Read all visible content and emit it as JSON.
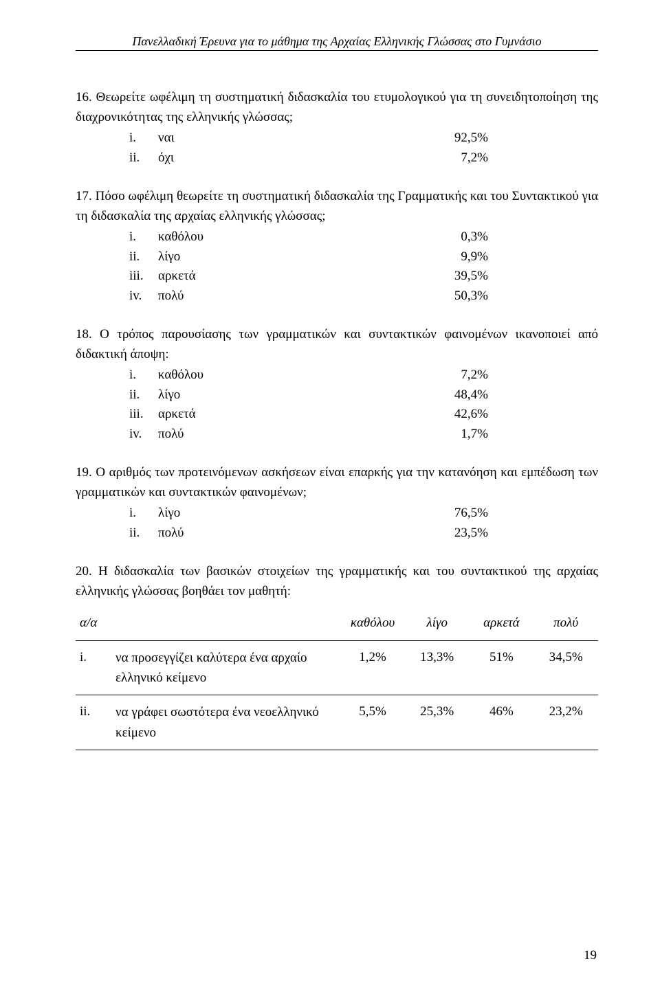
{
  "running_header": "Πανελλαδική Έρευνα για το μάθημα της Αρχαίας Ελληνικής Γλώσσας στο Γυμνάσιο",
  "q16": {
    "num": "16.",
    "text": "Θεωρείτε ωφέλιμη τη συστηματική διδασκαλία του ετυμολογικού για τη συνειδητοποίηση της διαχρονικότητας της ελληνικής γλώσσας;",
    "options": [
      {
        "marker": "i.",
        "label": "ναι",
        "value": "92,5%"
      },
      {
        "marker": "ii.",
        "label": "όχι",
        "value": "7,2%"
      }
    ]
  },
  "q17": {
    "num": "17.",
    "text": "Πόσο ωφέλιμη θεωρείτε τη συστηματική διδασκαλία της Γραμματικής και του Συντακτικού για τη διδασκαλία της αρχαίας ελληνικής γλώσσας;",
    "options": [
      {
        "marker": "i.",
        "label": "καθόλου",
        "value": "0,3%"
      },
      {
        "marker": "ii.",
        "label": "λίγο",
        "value": "9,9%"
      },
      {
        "marker": "iii.",
        "label": "αρκετά",
        "value": "39,5%"
      },
      {
        "marker": "iv.",
        "label": "πολύ",
        "value": "50,3%"
      }
    ]
  },
  "q18": {
    "num": "18.",
    "text": "Ο τρόπος παρουσίασης των γραμματικών και συντακτικών φαινομένων ικανοποιεί από διδακτική άποψη:",
    "options": [
      {
        "marker": "i.",
        "label": "καθόλου",
        "value": "7,2%"
      },
      {
        "marker": "ii.",
        "label": "λίγο",
        "value": "48,4%"
      },
      {
        "marker": "iii.",
        "label": "αρκετά",
        "value": "42,6%"
      },
      {
        "marker": "iv.",
        "label": "πολύ",
        "value": "1,7%"
      }
    ]
  },
  "q19": {
    "num": "19.",
    "text": "Ο αριθμός των προτεινόμενων ασκήσεων είναι επαρκής για την κατανόηση και εμπέδωση των γραμματικών και συντακτικών φαινομένων;",
    "options": [
      {
        "marker": "i.",
        "label": "λίγο",
        "value": "76,5%"
      },
      {
        "marker": "ii.",
        "label": "πολύ",
        "value": "23,5%"
      }
    ]
  },
  "q20": {
    "num": "20.",
    "text": "Η διδασκαλία των βασικών στοιχείων της γραμματικής και του συντακτικού της αρχαίας ελληνικής γλώσσας βοηθάει τον μαθητή:",
    "table": {
      "columns": [
        "α/α",
        "",
        "καθόλου",
        "λίγο",
        "αρκετά",
        "πολύ"
      ],
      "rows": [
        {
          "marker": "i.",
          "desc": "να προσεγγίζει καλύτερα ένα αρχαίο ελληνικό κείμενο",
          "v": [
            "1,2%",
            "13,3%",
            "51%",
            "34,5%"
          ]
        },
        {
          "marker": "ii.",
          "desc": "να γράφει σωστότερα ένα νεοελληνικό κείμενο",
          "v": [
            "5,5%",
            "25,3%",
            "46%",
            "23,2%"
          ]
        }
      ]
    }
  },
  "page_number": "19"
}
